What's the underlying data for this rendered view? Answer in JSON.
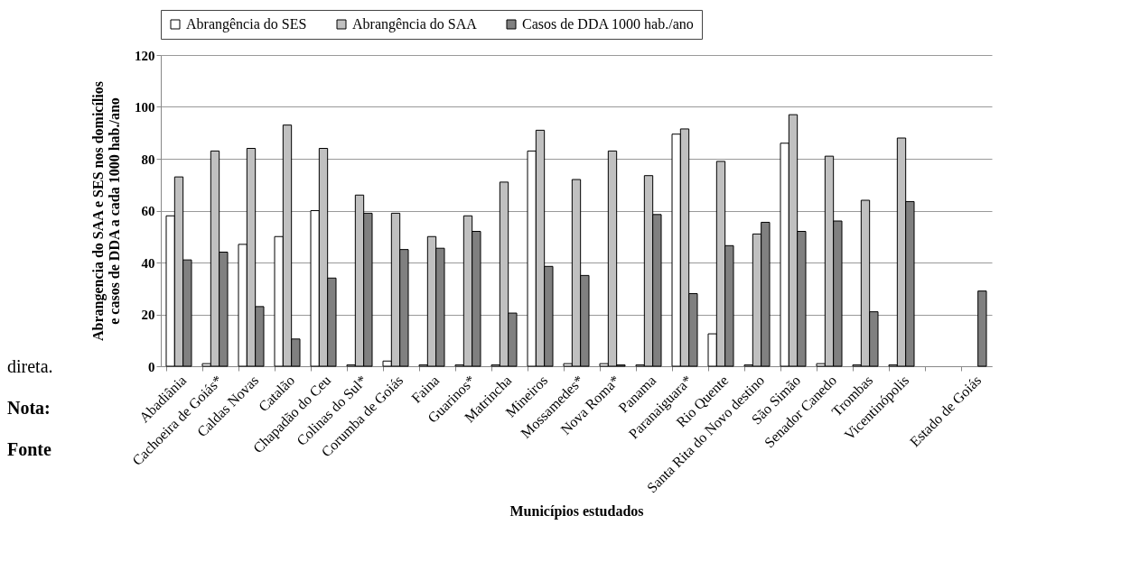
{
  "chart_data": {
    "type": "bar",
    "xlabel": "Municípios estudados",
    "ylabel": "Abrangencia do SAA e SES  nos domicílios e casos de DDA a cada 1000 hab./ano",
    "categories": [
      "Abadiânia",
      "Cachoeira de Goiás*",
      "Caldas Novas",
      "Catalão",
      "Chapadão do Ceu",
      "Colinas do Sul*",
      "Corumba de Goiás",
      "Faina",
      "Guarinos*",
      "Matrincha",
      "Mineiros",
      "Mossamedes*",
      "Nova Roma*",
      "Panama",
      "Paranaiguara*",
      "Rio Quente",
      "Santa Rita do Novo destino",
      "São Simão",
      "Senador Canedo",
      "Trombas",
      "Vicentinópolis",
      null,
      "Estado de Goiás"
    ],
    "series": [
      {
        "name": "Abrangência do SES",
        "color": "#ffffff",
        "values": [
          58,
          1,
          47,
          50,
          60,
          0.5,
          2,
          0.5,
          0.5,
          0.5,
          83,
          1,
          1,
          0.5,
          89.5,
          12.5,
          0.5,
          86,
          1,
          0.5,
          0.5,
          null,
          null
        ]
      },
      {
        "name": "Abrangência do SAA",
        "color": "#c0c0c0",
        "values": [
          73,
          83,
          84,
          93,
          84,
          66,
          59,
          50,
          58,
          71,
          91,
          72,
          83,
          73.5,
          91.5,
          79,
          51,
          97,
          81,
          64,
          88,
          null,
          null
        ]
      },
      {
        "name": "Casos de DDA 1000 hab./ano",
        "color": "#808080",
        "values": [
          41,
          44,
          23,
          10.5,
          34,
          59,
          45,
          45.5,
          52,
          20.5,
          38.5,
          35,
          0.5,
          58.5,
          28,
          46.5,
          55.5,
          52,
          56,
          21,
          63.5,
          null,
          29
        ]
      }
    ],
    "ylim": [
      0,
      120
    ],
    "yticks": [
      0,
      20,
      40,
      60,
      80,
      100,
      120
    ],
    "grid": "y",
    "legend": "top",
    "annotations": [
      "direta.",
      "Nota:",
      "Fonte"
    ]
  }
}
